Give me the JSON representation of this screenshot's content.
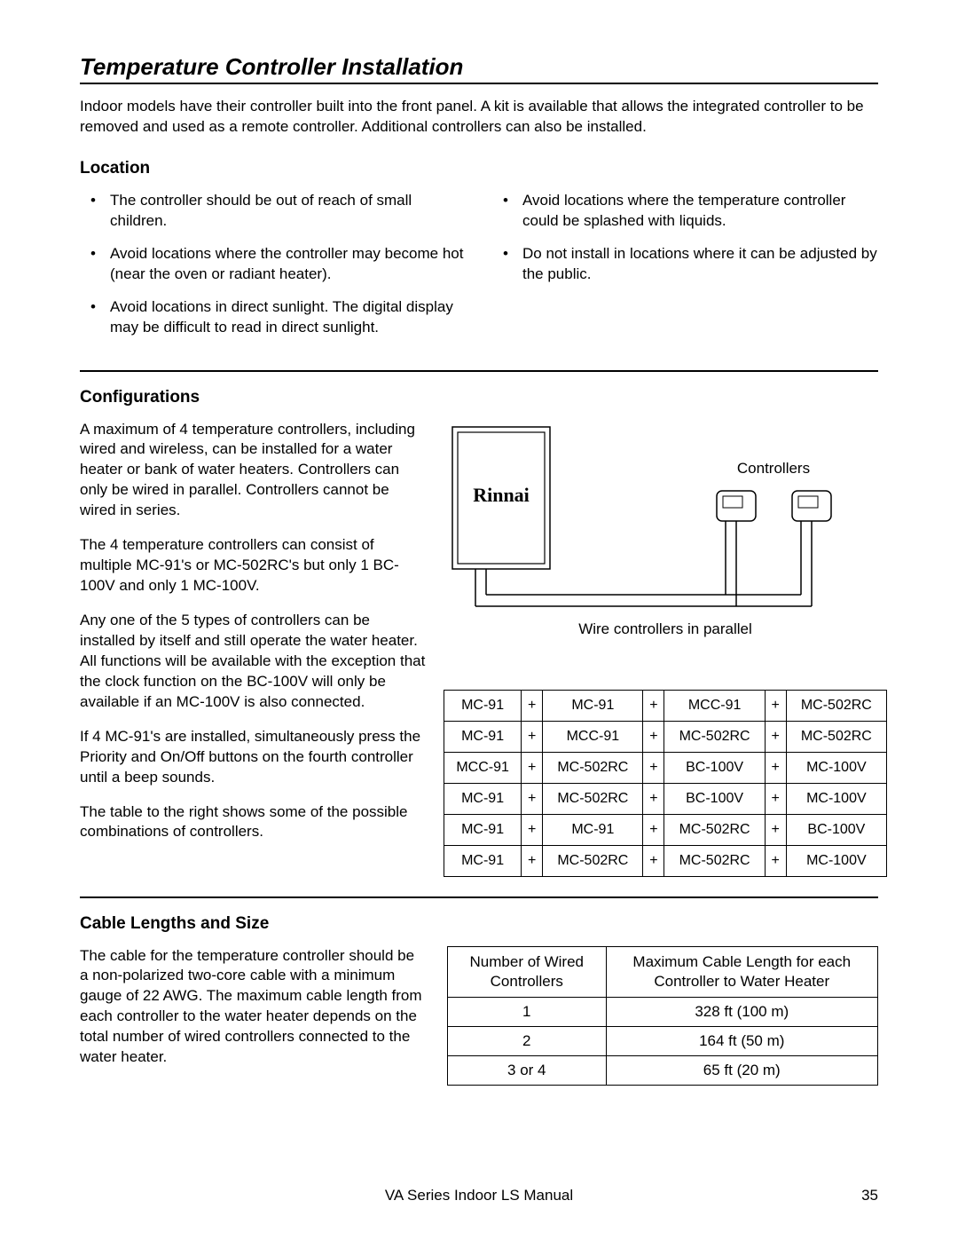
{
  "title": "Temperature Controller Installation",
  "intro": "Indoor models have their controller built into the front panel.  A kit is available that allows the integrated controller to be removed and used as a remote controller.  Additional controllers can also be installed.",
  "location": {
    "heading": "Location",
    "left_bullets": [
      "The controller should be out of reach of small children.",
      "Avoid locations where the controller may become hot (near the oven or radiant heater).",
      "Avoid locations in direct sunlight.  The digital display may be difficult to read in direct sunlight."
    ],
    "right_bullets": [
      "Avoid locations where the temperature controller could be splashed with liquids.",
      "Do not install in locations where it can be adjusted by the public."
    ]
  },
  "config": {
    "heading": "Configurations",
    "paras": [
      "A maximum of 4 temperature controllers, including wired and wireless, can be installed for a water heater or bank of water heaters.  Controllers can only be wired in parallel.  Controllers cannot be wired in series.",
      "The 4 temperature controllers can consist of multiple MC-91's or MC-502RC's but only 1 BC-100V and only 1 MC-100V.",
      "Any one of the 5 types of controllers can be installed by itself and still operate the water heater.  All functions will be available with the exception that the clock function on the BC-100V will only be available if an MC-100V is also connected.",
      "If 4 MC-91's are installed, simultaneously press the Priority and On/Off buttons on the fourth controller until a beep sounds.",
      "",
      "The table to the right shows some of the possible combinations of controllers."
    ],
    "diagram": {
      "brand": "Rinnai",
      "controllers_label": "Controllers",
      "caption": "Wire controllers in parallel"
    },
    "combos": {
      "plus": "+",
      "rows": [
        [
          "MC-91",
          "MC-91",
          "MCC-91",
          "MC-502RC"
        ],
        [
          "MC-91",
          "MCC-91",
          "MC-502RC",
          "MC-502RC"
        ],
        [
          "MCC-91",
          "MC-502RC",
          "BC-100V",
          "MC-100V"
        ],
        [
          "MC-91",
          "MC-502RC",
          "BC-100V",
          "MC-100V"
        ],
        [
          "MC-91",
          "MC-91",
          "MC-502RC",
          "BC-100V"
        ],
        [
          "MC-91",
          "MC-502RC",
          "MC-502RC",
          "MC-100V"
        ]
      ]
    }
  },
  "cable": {
    "heading": "Cable Lengths and Size",
    "para": "The cable for the temperature controller should be a non-polarized two-core cable with a minimum gauge of 22 AWG.  The maximum cable length from each controller to the water heater depends on the total number of wired controllers connected to the water heater.",
    "table": {
      "headers": [
        "Number of Wired Controllers",
        "Maximum Cable Length for each Controller to Water Heater"
      ],
      "rows": [
        [
          "1",
          "328 ft (100 m)"
        ],
        [
          "2",
          "164 ft (50 m)"
        ],
        [
          "3 or 4",
          "65 ft (20 m)"
        ]
      ]
    }
  },
  "footer": {
    "doc": "VA Series Indoor LS Manual",
    "page": "35"
  }
}
